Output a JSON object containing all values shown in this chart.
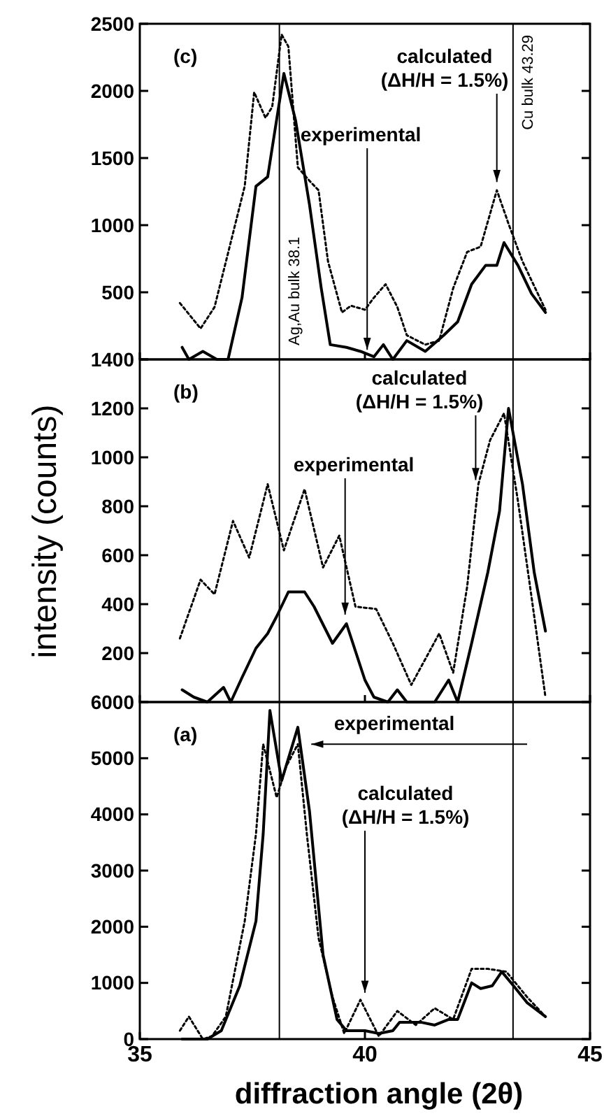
{
  "chart_data": [
    {
      "type": "line",
      "xlim": [
        35,
        45
      ],
      "xticks": [
        35,
        40,
        45
      ],
      "ylim": [
        0,
        2500
      ],
      "yticks": [
        {
          "value": 0,
          "label": null
        },
        500,
        1000,
        1500,
        2000,
        2500
      ],
      "tick_labels": "y",
      "grid": false,
      "ref_lines": [
        {
          "axis": "x",
          "value": 38.1,
          "label": "Ag,Au bulk 38.1"
        },
        {
          "axis": "x",
          "value": 43.29,
          "label": "Cu bulk 43.29"
        }
      ],
      "annotations": [
        "(c)",
        {
          "text": "experimental",
          "x": 40.05,
          "y": 40
        },
        {
          "text": "calculated\n(ΔH/H = 1.5%)",
          "x": 42.93,
          "y": 1290
        }
      ],
      "series": [
        {
          "color": "#000000",
          "line_style": "solid",
          "x": [
            35.94,
            36.09,
            36.4,
            36.71,
            36.96,
            37.27,
            37.58,
            37.84,
            38.2,
            38.46,
            38.77,
            39.03,
            39.23,
            39.59,
            39.9,
            40.2,
            40.41,
            40.62,
            40.93,
            41.34,
            41.75,
            42.06,
            42.37,
            42.68,
            42.93,
            43.09,
            43.4,
            43.7,
            44.01
          ],
          "values": [
            90,
            0,
            60,
            0,
            0,
            460,
            1290,
            1360,
            2130,
            1780,
            1150,
            530,
            110,
            90,
            60,
            20,
            110,
            0,
            140,
            60,
            180,
            280,
            560,
            700,
            700,
            870,
            700,
            490,
            350
          ]
        },
        {
          "color": "#000000",
          "line_style": "dotted",
          "x": [
            35.89,
            36.35,
            36.66,
            37.07,
            37.33,
            37.54,
            37.79,
            37.94,
            38.15,
            38.3,
            38.51,
            38.77,
            38.97,
            39.18,
            39.49,
            39.69,
            40.0,
            40.2,
            40.46,
            40.72,
            40.93,
            41.34,
            41.65,
            41.96,
            42.27,
            42.57,
            42.93,
            43.19,
            43.5,
            44.01
          ],
          "values": [
            420,
            230,
            390,
            940,
            1290,
            1990,
            1800,
            1880,
            2420,
            2330,
            1430,
            1330,
            1260,
            730,
            350,
            400,
            370,
            460,
            560,
            390,
            180,
            110,
            140,
            530,
            800,
            840,
            1260,
            1010,
            730,
            370
          ]
        }
      ]
    },
    {
      "type": "line",
      "xlim": [
        35,
        45
      ],
      "xticks": [
        35,
        40,
        45
      ],
      "ylim": [
        0,
        1400
      ],
      "yticks": [
        {
          "value": 0,
          "label": null
        },
        200,
        400,
        600,
        800,
        1000,
        1200,
        1400
      ],
      "tick_labels": "y",
      "grid": false,
      "ylabel": "intensity (counts)",
      "ref_lines": [
        {
          "axis": "x",
          "value": 38.1
        },
        {
          "axis": "x",
          "value": 43.29
        }
      ],
      "annotations": [
        "(b)",
        {
          "text": "experimental",
          "x": 39.56,
          "y": 340
        },
        {
          "text": "calculated\n(ΔH/H = 1.5%)",
          "x": 42.46,
          "y": 890
        }
      ],
      "series": [
        {
          "color": "#000000",
          "line_style": "solid",
          "x": [
            35.94,
            36.2,
            36.5,
            36.86,
            37.02,
            37.27,
            37.58,
            37.84,
            38.04,
            38.3,
            38.66,
            38.87,
            39.28,
            39.59,
            40.0,
            40.2,
            40.51,
            40.72,
            40.93,
            41.55,
            41.86,
            42.06,
            42.37,
            42.73,
            42.99,
            43.19,
            43.5,
            43.76,
            44.01
          ],
          "values": [
            50,
            20,
            0,
            60,
            0,
            100,
            220,
            280,
            350,
            450,
            450,
            390,
            240,
            320,
            90,
            20,
            0,
            50,
            0,
            0,
            90,
            0,
            240,
            530,
            780,
            1200,
            890,
            530,
            290
          ]
        },
        {
          "color": "#000000",
          "line_style": "dotted",
          "x": [
            35.89,
            36.35,
            36.66,
            37.07,
            37.43,
            37.84,
            38.2,
            38.66,
            39.07,
            39.43,
            39.79,
            40.25,
            40.62,
            41.03,
            41.65,
            41.96,
            42.27,
            42.52,
            42.78,
            43.09,
            43.4,
            43.7,
            44.01
          ],
          "values": [
            260,
            500,
            440,
            740,
            590,
            890,
            620,
            870,
            550,
            680,
            390,
            380,
            240,
            70,
            280,
            120,
            470,
            890,
            1070,
            1180,
            820,
            430,
            20
          ]
        }
      ]
    },
    {
      "type": "line",
      "xlim": [
        35,
        45
      ],
      "xticks": [
        35,
        40,
        45
      ],
      "ylim": [
        0,
        6000
      ],
      "yticks": [
        0,
        1000,
        2000,
        3000,
        4000,
        5000,
        6000
      ],
      "grid": false,
      "xlabel": "diffraction angle (2θ)",
      "ref_lines": [
        {
          "axis": "x",
          "value": 38.1
        },
        {
          "axis": "x",
          "value": 43.29
        }
      ],
      "annotations": [
        "(a)",
        {
          "text": "experimental",
          "x": 38.56,
          "y": 5250
        },
        {
          "text": "calculated\n(ΔH/H = 1.5%)",
          "x": 40.0,
          "y": 750
        }
      ],
      "series": [
        {
          "color": "#000000",
          "line_style": "solid",
          "x": [
            35.94,
            36.5,
            36.81,
            37.22,
            37.58,
            37.74,
            37.89,
            38.15,
            38.51,
            38.77,
            39.07,
            39.38,
            39.59,
            40.0,
            40.31,
            40.62,
            40.77,
            41.24,
            41.55,
            41.86,
            42.06,
            42.37,
            42.57,
            42.83,
            43.04,
            43.3,
            43.6,
            44.01
          ],
          "values": [
            0,
            0,
            150,
            950,
            2100,
            3650,
            5850,
            4600,
            5550,
            4050,
            1500,
            350,
            150,
            150,
            100,
            150,
            300,
            300,
            250,
            350,
            350,
            1000,
            900,
            950,
            1200,
            950,
            650,
            400
          ]
        },
        {
          "color": "#000000",
          "line_style": "dotted",
          "x": [
            35.89,
            36.09,
            36.4,
            36.6,
            36.91,
            37.33,
            37.58,
            37.74,
            38.04,
            38.25,
            38.51,
            38.71,
            38.97,
            39.28,
            39.54,
            39.9,
            40.31,
            40.72,
            41.13,
            41.55,
            41.96,
            42.37,
            42.73,
            43.14,
            43.6,
            44.01
          ],
          "values": [
            150,
            400,
            0,
            50,
            400,
            2100,
            3650,
            5250,
            4300,
            4850,
            5250,
            3650,
            1800,
            750,
            100,
            700,
            50,
            500,
            250,
            550,
            350,
            1250,
            1250,
            1200,
            750,
            400
          ]
        }
      ]
    }
  ]
}
